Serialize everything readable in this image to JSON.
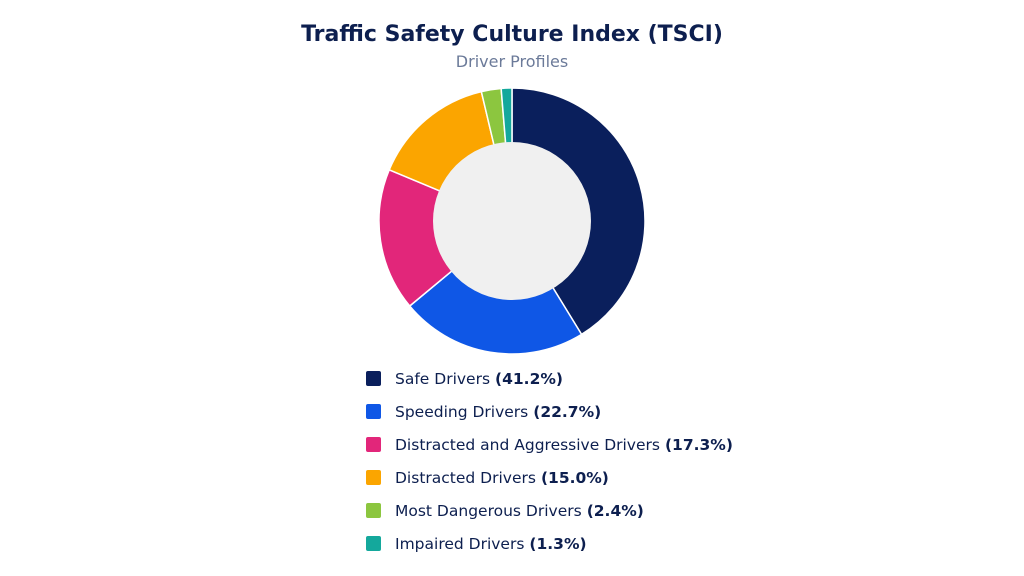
{
  "chart_data": {
    "type": "pie",
    "title": "Traffic Safety Culture Index (TSCI)",
    "subtitle": "Driver Profiles",
    "donut": true,
    "legend_position": "bottom",
    "slices": [
      {
        "label": "Safe Drivers",
        "value": 41.2,
        "pct_label": "(41.2%)",
        "color": "#0a1f5c"
      },
      {
        "label": "Speeding Drivers",
        "value": 22.7,
        "pct_label": "(22.7%)",
        "color": "#0f57e6"
      },
      {
        "label": "Distracted and Aggressive Drivers",
        "value": 17.3,
        "pct_label": "(17.3%)",
        "color": "#e2267a"
      },
      {
        "label": "Distracted Drivers",
        "value": 15.0,
        "pct_label": "(15.0%)",
        "color": "#fba500"
      },
      {
        "label": "Most Dangerous Drivers",
        "value": 2.4,
        "pct_label": "(2.4%)",
        "color": "#8cc63f"
      },
      {
        "label": "Impaired Drivers",
        "value": 1.3,
        "pct_label": "(1.3%)",
        "color": "#14a89c"
      }
    ]
  }
}
